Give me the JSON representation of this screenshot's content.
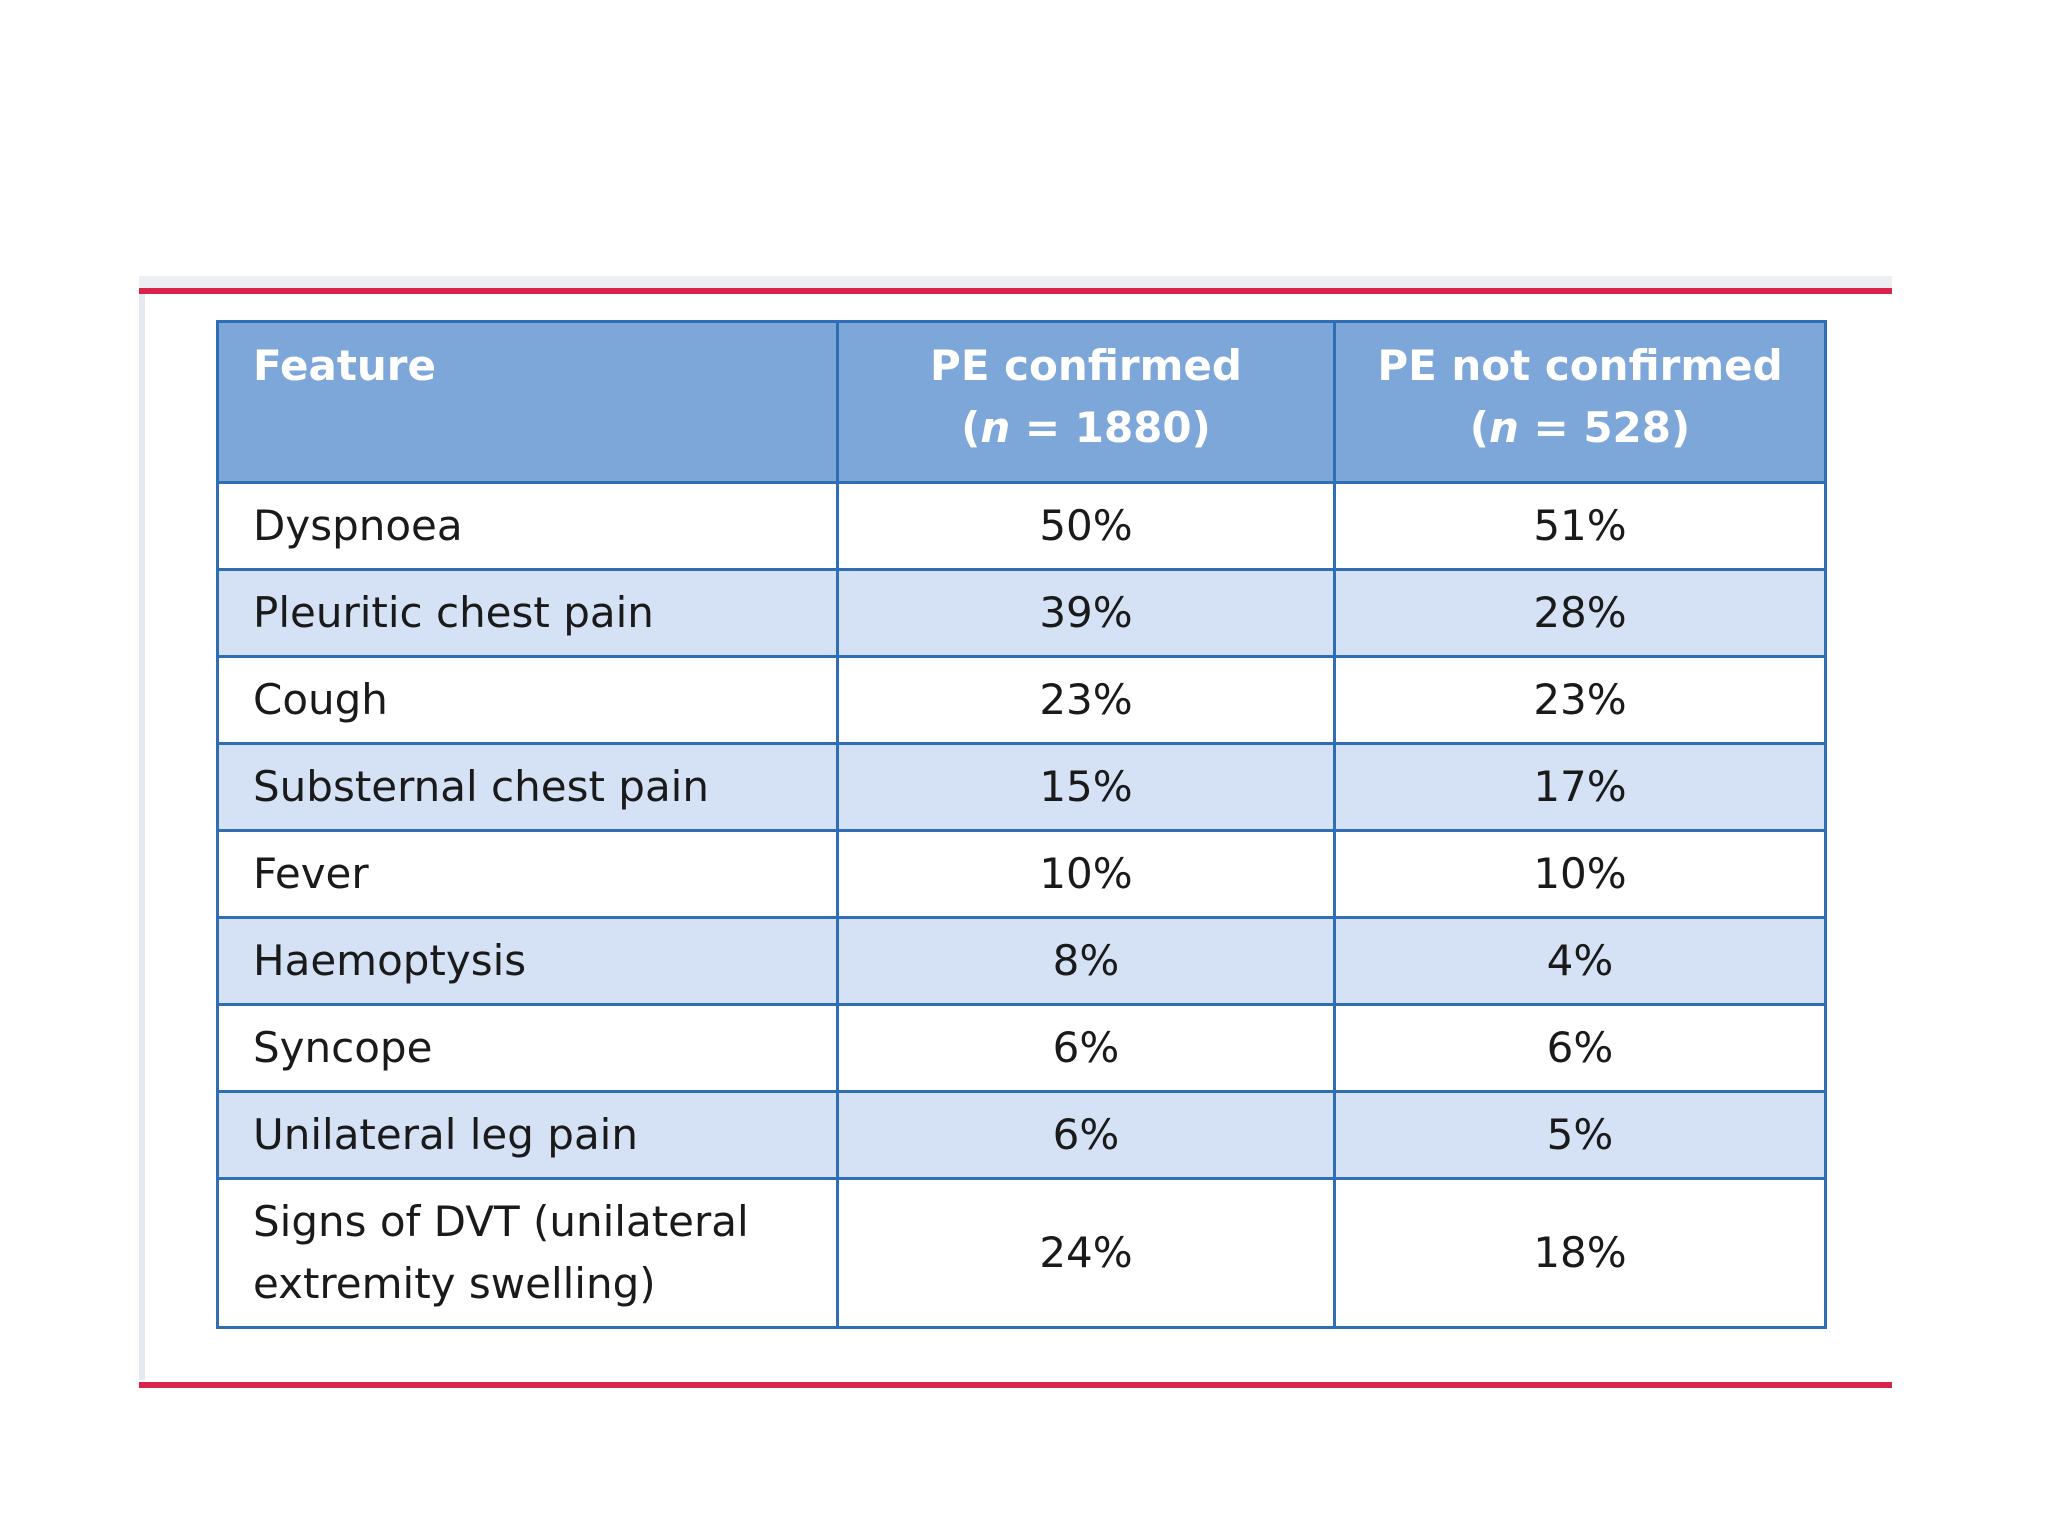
{
  "colors": {
    "header_bg": "#7ea7d9",
    "band_bg": "#d5e2f5",
    "row_bg": "#ffffff",
    "border": "#2f6db5",
    "accent_rule": "#d9234a"
  },
  "table": {
    "header": {
      "feature": "Feature",
      "confirmed_line1": "PE confirmed",
      "confirmed_open": "(",
      "confirmed_n": "n",
      "confirmed_count": " = 1880)",
      "not_confirmed_line1": "PE not confirmed",
      "not_confirmed_open": "(",
      "not_confirmed_n": "n",
      "not_confirmed_count": " = 528)"
    },
    "rows": [
      {
        "feature": "Dyspnoea",
        "confirmed": "50%",
        "not_confirmed": "51%"
      },
      {
        "feature": "Pleuritic chest pain",
        "confirmed": "39%",
        "not_confirmed": "28%"
      },
      {
        "feature": "Cough",
        "confirmed": "23%",
        "not_confirmed": "23%"
      },
      {
        "feature": "Substernal chest pain",
        "confirmed": "15%",
        "not_confirmed": "17%"
      },
      {
        "feature": "Fever",
        "confirmed": "10%",
        "not_confirmed": "10%"
      },
      {
        "feature": "Haemoptysis",
        "confirmed": "8%",
        "not_confirmed": "4%"
      },
      {
        "feature": "Syncope",
        "confirmed": "6%",
        "not_confirmed": "6%"
      },
      {
        "feature": "Unilateral leg pain",
        "confirmed": "6%",
        "not_confirmed": "5%"
      },
      {
        "feature": "Signs of DVT (unilateral extremity swelling)",
        "confirmed": "24%",
        "not_confirmed": "18%"
      }
    ]
  }
}
